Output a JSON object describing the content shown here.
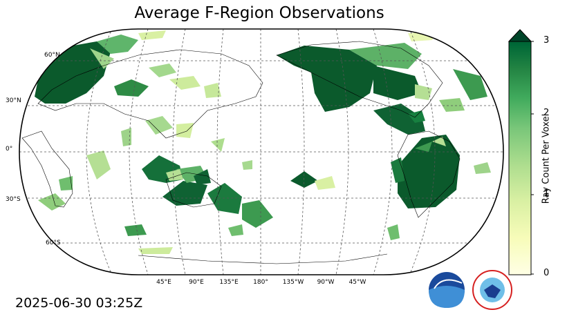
{
  "title": "Average F-Region Observations",
  "timestamp": "2025-06-30 03:25Z",
  "colorbar": {
    "label": "Ray Count Per Voxel",
    "ticks": [
      "0",
      "1",
      "2",
      "3"
    ],
    "min": 0,
    "max": 3,
    "extend": "max",
    "colors": [
      "#ffffe5",
      "#f7fcb9",
      "#d9f0a3",
      "#addd8e",
      "#78c679",
      "#41ab5d",
      "#238443",
      "#006837",
      "#004529"
    ]
  },
  "map": {
    "projection": "Robinson, centered 180°",
    "lat_labels": [
      "60°N",
      "30°N",
      "0°",
      "30°S",
      "60°S"
    ],
    "lon_labels": [
      "45°E",
      "90°E",
      "135°E",
      "180°",
      "135°W",
      "90°W",
      "45°W"
    ]
  },
  "logos": {
    "noaa_text": "NOAA",
    "nws_text": "NATIONAL WEATHER SERVICE"
  }
}
